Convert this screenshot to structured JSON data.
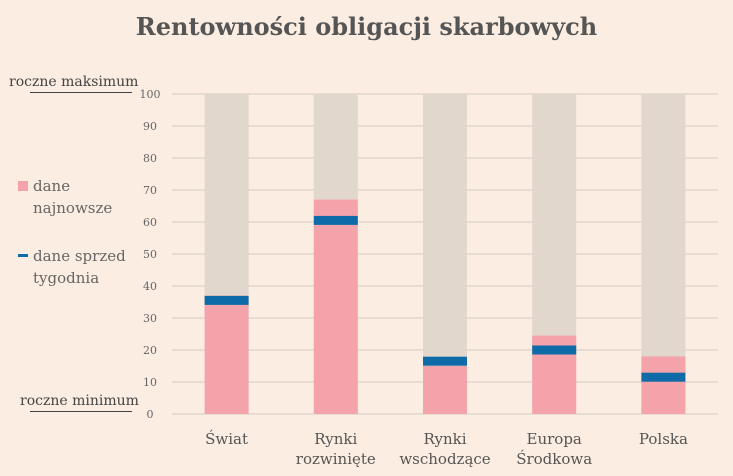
{
  "chart_data": {
    "type": "bar",
    "title": "Rentowności obligacji skarbowych",
    "categories": [
      [
        "Świat"
      ],
      [
        "Rynki",
        "rozwinięte"
      ],
      [
        "Rynki",
        "wschodzące"
      ],
      [
        "Europa",
        "Środkowa"
      ],
      [
        "Polska"
      ]
    ],
    "series": [
      {
        "name": "dane najnowsze",
        "values": [
          37,
          67,
          15,
          24.5,
          18
        ]
      },
      {
        "name": "dane sprzed tygodnia",
        "values": [
          35.5,
          60.5,
          16.5,
          20,
          11.5
        ]
      }
    ],
    "background_max": 100,
    "ylim": [
      0,
      100
    ],
    "yticks": [
      0,
      10,
      20,
      30,
      40,
      50,
      60,
      70,
      80,
      90,
      100
    ],
    "top_marker": "roczne maksimum",
    "bottom_marker": "roczne minimum",
    "legend": {
      "latest": [
        "dane",
        "najnowsze"
      ],
      "week_ago": [
        "dane sprzed",
        "tygodnia"
      ],
      "placement": "left"
    },
    "colors": {
      "latest": "#f5a3aa",
      "week_ago": "#0f6aa8",
      "range": "#e2d7cc",
      "grid": "#d2cac4"
    }
  }
}
